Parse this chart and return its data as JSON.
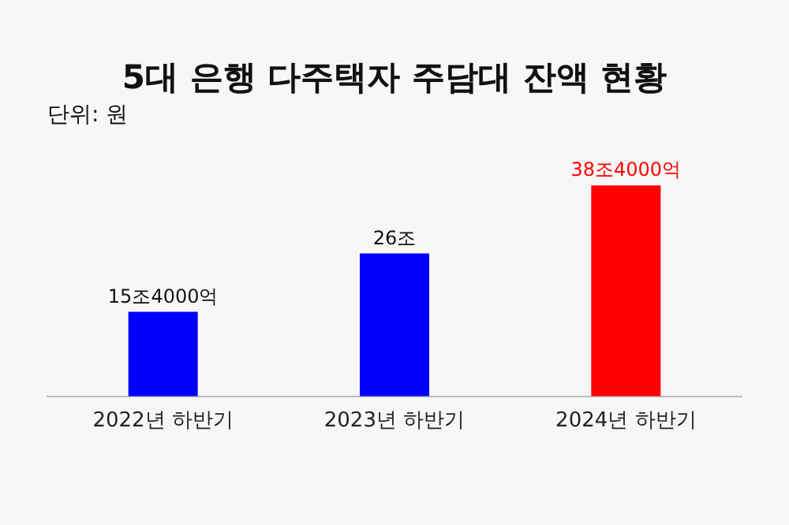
{
  "chart_data": {
    "type": "bar",
    "title": "5대 은행 다주택자 주담대 잔액 현황",
    "subtitle": "단위: 원",
    "categories": [
      "2022년 하반기",
      "2023년 하반기",
      "2024년 하반기"
    ],
    "values": [
      15.4,
      26,
      38.4
    ],
    "colors": [
      "#0000ff",
      "#0000ff",
      "#ff0000"
    ],
    "value_labels": [
      "15조4000억",
      "26조",
      "38조4000억"
    ],
    "grid": false,
    "legend": false
  }
}
